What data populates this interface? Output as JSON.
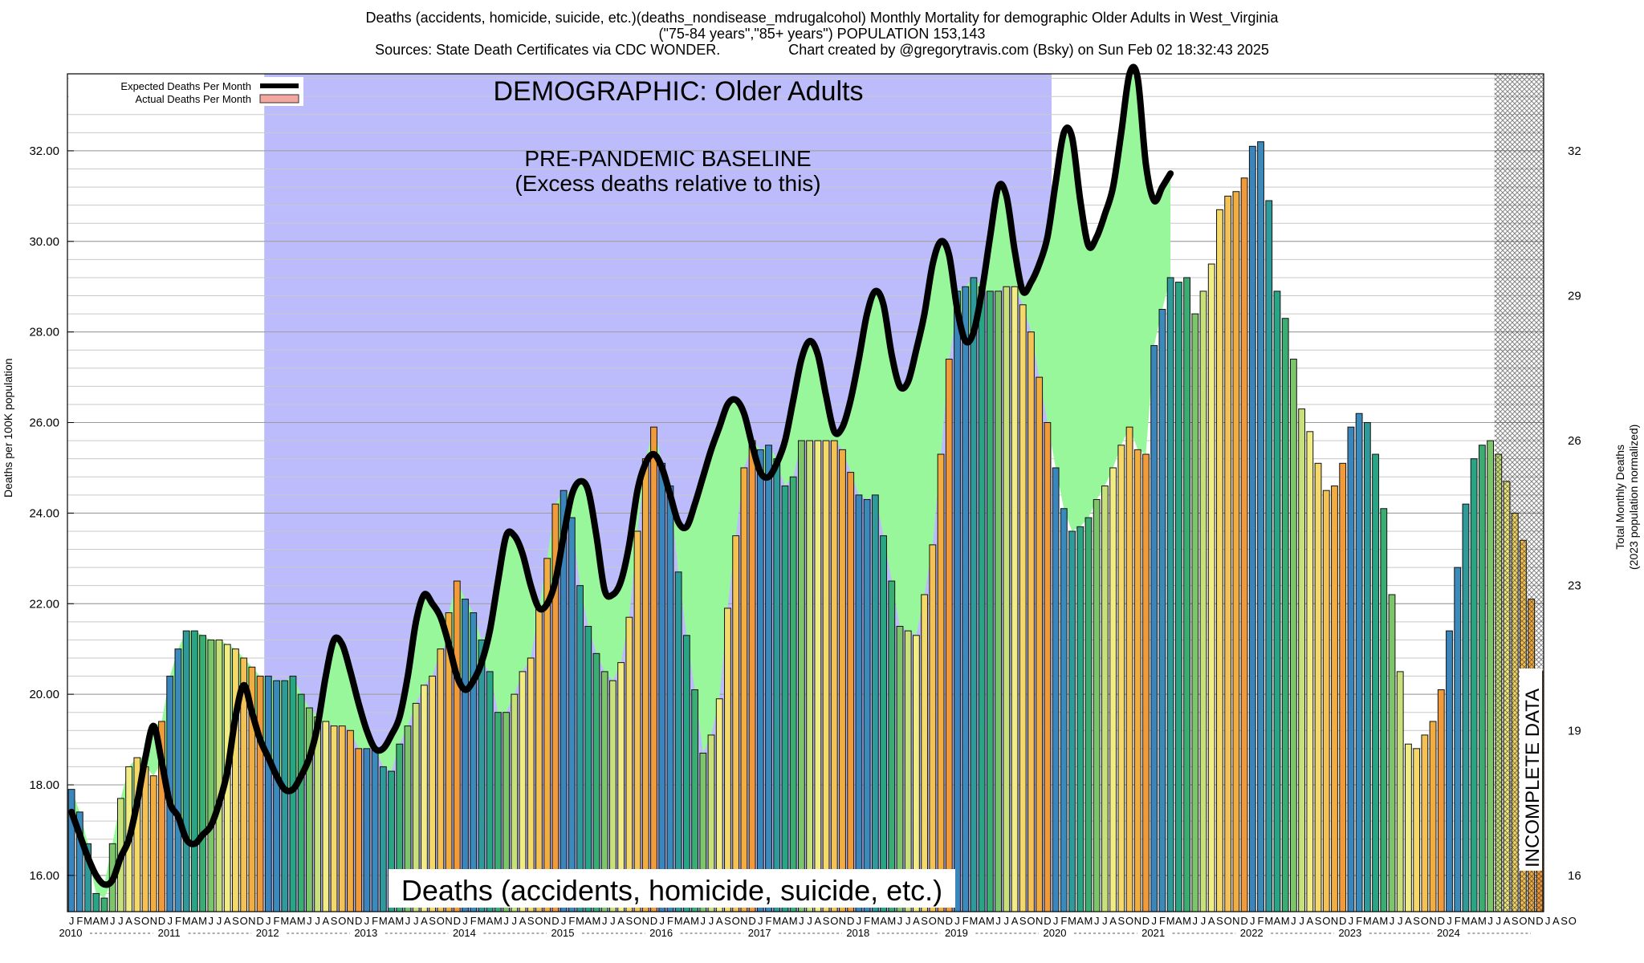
{
  "title": {
    "line1": "Deaths (accidents, homicide, suicide, etc.)(deaths_nondisease_mdrugalcohol) Monthly Mortality for demographic Older Adults in West_Virginia",
    "line2": "(\"75-84 years\",\"85+ years\") POPULATION 153,143",
    "line3": "Sources: State Death Certificates via CDC WONDER.                 Chart created by @gregorytravis.com (Bsky) on Sun Feb 02 18:32:43 2025"
  },
  "labels": {
    "demographic": "DEMOGRAPHIC: Older Adults",
    "baseline_line1": "PRE-PANDEMIC BASELINE",
    "baseline_line2": "(Excess deaths relative to this)",
    "category": "Deaths (accidents, homicide, suicide, etc.)",
    "incomplete": "INCOMPLETE DATA",
    "ylabel_left": "Deaths per 100K population",
    "ylabel_right_line1": "Total Monthly Deaths",
    "ylabel_right_line2": "(2023 population normalized)"
  },
  "legend": {
    "expected": "Expected Deaths Per Month",
    "actual": "Actual Deaths Per Month"
  },
  "chart_data": {
    "type": "bar",
    "start": "2010-01",
    "y_left_ticks": [
      "16.00",
      "18.00",
      "20.00",
      "22.00",
      "24.00",
      "26.00",
      "28.00",
      "30.00",
      "32.00"
    ],
    "ylim": [
      15.2,
      33.7
    ],
    "y_right_ticks": [
      "16",
      "19",
      "23",
      "26",
      "29",
      "32"
    ],
    "month_letters": [
      "J",
      "F",
      "M",
      "A",
      "M",
      "J",
      "J",
      "A",
      "S",
      "O",
      "N",
      "D"
    ],
    "years": [
      "2010",
      "2011",
      "2012",
      "2013",
      "2014",
      "2015",
      "2016",
      "2017",
      "2018",
      "2019",
      "2020",
      "2021",
      "2022",
      "2023",
      "2024"
    ],
    "tail_months": [
      "J",
      "A",
      "S",
      "O"
    ],
    "baseline_region": {
      "from": "2012-01",
      "to": "2020-01",
      "label": "PRE-PANDEMIC BASELINE"
    },
    "incomplete_from": "2024-07",
    "series": [
      {
        "name": "Actual Deaths Per Month",
        "values": [
          17.9,
          17.4,
          16.7,
          15.6,
          15.5,
          16.7,
          17.7,
          18.4,
          18.6,
          18.4,
          18.2,
          19.4,
          20.4,
          21.0,
          21.4,
          21.4,
          21.3,
          21.2,
          21.2,
          21.1,
          21.0,
          20.8,
          20.6,
          20.4,
          20.4,
          20.3,
          20.3,
          20.4,
          20.0,
          19.7,
          19.5,
          19.4,
          19.3,
          19.3,
          19.2,
          18.8,
          18.8,
          18.8,
          18.4,
          18.3,
          18.9,
          19.3,
          19.8,
          20.2,
          20.4,
          21.0,
          21.8,
          22.5,
          22.1,
          21.8,
          21.2,
          20.5,
          19.6,
          19.6,
          20.0,
          20.5,
          20.8,
          21.9,
          23.0,
          24.2,
          24.5,
          23.9,
          22.4,
          21.5,
          20.9,
          20.5,
          20.3,
          20.7,
          21.7,
          23.6,
          25.2,
          25.9,
          25.1,
          24.6,
          22.7,
          21.3,
          20.1,
          18.7,
          19.1,
          19.9,
          21.9,
          23.5,
          25.0,
          25.6,
          25.4,
          25.5,
          25.2,
          24.6,
          24.8,
          25.6,
          25.6,
          25.6,
          25.6,
          25.6,
          25.4,
          24.9,
          24.4,
          24.3,
          24.4,
          23.5,
          22.5,
          21.5,
          21.4,
          21.3,
          22.2,
          23.3,
          25.3,
          27.4,
          28.9,
          29.0,
          29.2,
          29.0,
          28.9,
          28.9,
          29.0,
          29.0,
          28.6,
          28.0,
          27.0,
          26.0,
          25.0,
          24.1,
          23.6,
          23.7,
          23.9,
          24.3,
          24.6,
          25.0,
          25.5,
          25.9,
          25.4,
          25.3,
          27.7,
          28.5,
          29.2,
          29.1,
          29.2,
          28.4,
          28.9,
          29.5,
          30.7,
          31.0,
          31.1,
          31.4,
          32.1,
          32.2,
          30.9,
          28.9,
          28.3,
          27.4,
          26.3,
          25.8,
          25.1,
          24.5,
          24.6,
          25.1,
          25.9,
          26.2,
          26.0,
          25.3,
          24.1,
          22.2,
          20.5,
          18.9,
          18.8,
          19.1,
          19.4,
          20.1,
          21.4,
          22.8,
          24.2,
          25.2,
          25.5,
          25.6,
          25.3,
          24.7,
          24.0,
          23.4,
          22.1,
          20.5
        ]
      },
      {
        "name": "Expected Deaths Per Month",
        "values": [
          17.4,
          16.9,
          16.4,
          16.0,
          15.8,
          15.9,
          16.4,
          16.8,
          17.6,
          18.6,
          19.3,
          18.5,
          17.6,
          17.3,
          16.8,
          16.7,
          16.9,
          17.1,
          17.6,
          18.3,
          19.5,
          20.2,
          19.6,
          19.0,
          18.6,
          18.2,
          17.9,
          17.9,
          18.2,
          18.6,
          19.3,
          20.4,
          21.2,
          21.1,
          20.5,
          19.8,
          19.2,
          18.8,
          18.8,
          19.1,
          19.5,
          20.4,
          21.6,
          22.2,
          22.0,
          21.7,
          21.1,
          20.4,
          20.1,
          20.3,
          20.7,
          21.4,
          22.5,
          23.5,
          23.5,
          23.1,
          22.4,
          21.9,
          22.0,
          22.5,
          23.5,
          24.4,
          24.7,
          24.5,
          23.5,
          22.3,
          22.2,
          22.5,
          23.3,
          24.5,
          25.1,
          25.3,
          25.0,
          24.4,
          23.8,
          23.7,
          24.2,
          24.8,
          25.4,
          25.9,
          26.4,
          26.5,
          26.2,
          25.5,
          24.9,
          24.8,
          25.1,
          25.6,
          26.5,
          27.4,
          27.8,
          27.5,
          26.6,
          25.8,
          25.9,
          26.5,
          27.4,
          28.4,
          28.9,
          28.6,
          27.5,
          26.8,
          26.9,
          27.6,
          28.4,
          29.5,
          30.0,
          29.7,
          28.5,
          27.8,
          28.0,
          28.9,
          30.1,
          31.2,
          31.0,
          29.8,
          28.9,
          29.1,
          29.5,
          30.1,
          31.3,
          32.4,
          32.3,
          30.9,
          29.9,
          30.1,
          30.6,
          31.2,
          32.4,
          33.7,
          33.6,
          31.7,
          30.9,
          31.2,
          31.5
        ]
      }
    ]
  }
}
